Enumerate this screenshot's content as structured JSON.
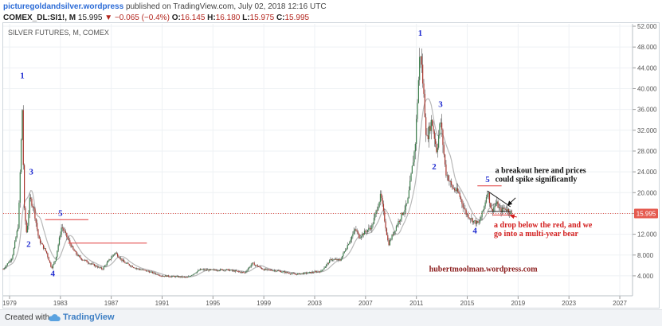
{
  "header": {
    "site": "picturegoldandsilver.wordpress",
    "published": "published on TradingView.com, July 02, 2018 12:16 UTC"
  },
  "quote": {
    "symbol": "COMEX_DL:SI1!, M",
    "last": "15.995",
    "change": "▼ −0.065 (−0.4%)",
    "o_label": "O:",
    "o": "16.145",
    "h_label": "H:",
    "h": "16.180",
    "l_label": "L:",
    "l": "15.975",
    "c_label": "C:",
    "c": "15.995"
  },
  "footer": {
    "created_with": "Created with",
    "brand": "TradingView"
  },
  "colors": {
    "up": "#3a7d4a",
    "down": "#a8342c",
    "wick": "#555555",
    "ma": "#b8b8b8",
    "red_line": "#e03a3a",
    "wave_label": "#1f2bd0",
    "note_black": "#111111",
    "note_red": "#d31f1f",
    "price_badge": "#e55a4f"
  },
  "chart_data": {
    "type": "candlestick",
    "title": "SILVER FUTURES, M, COMEX",
    "ylim": [
      2,
      52
    ],
    "xlim": [
      1978.5,
      2028.0
    ],
    "y_ticks": [
      "52.000",
      "48.000",
      "44.000",
      "40.000",
      "36.000",
      "32.000",
      "28.000",
      "24.000",
      "20.000",
      "16.000",
      "12.000",
      "8.000",
      "4.000"
    ],
    "x_ticks": [
      "1979",
      "1983",
      "1987",
      "1991",
      "1995",
      "1999",
      "2003",
      "2007",
      "2011",
      "2015",
      "2019",
      "2023",
      "2027"
    ],
    "last_price": "15.995",
    "reference_line": 15.995,
    "price_path": [
      [
        1978.5,
        5.3
      ],
      [
        1979.2,
        7.5
      ],
      [
        1979.7,
        14
      ],
      [
        1980.0,
        36
      ],
      [
        1980.15,
        17
      ],
      [
        1980.35,
        12
      ],
      [
        1980.6,
        19
      ],
      [
        1980.9,
        17
      ],
      [
        1981.3,
        11
      ],
      [
        1981.9,
        8.5
      ],
      [
        1982.3,
        5.5
      ],
      [
        1982.6,
        7
      ],
      [
        1983.1,
        13.5
      ],
      [
        1983.5,
        11.5
      ],
      [
        1984.0,
        9
      ],
      [
        1984.5,
        7.5
      ],
      [
        1985.5,
        6.2
      ],
      [
        1986.3,
        5.3
      ],
      [
        1987.3,
        8.5
      ],
      [
        1988.0,
        6.6
      ],
      [
        1989.0,
        5.4
      ],
      [
        1990.0,
        4.8
      ],
      [
        1991.0,
        4.0
      ],
      [
        1992.5,
        3.8
      ],
      [
        1993.0,
        3.7
      ],
      [
        1994.0,
        5.2
      ],
      [
        1995.0,
        5.1
      ],
      [
        1996.0,
        5.2
      ],
      [
        1997.5,
        4.6
      ],
      [
        1998.1,
        6.4
      ],
      [
        1999.0,
        5.2
      ],
      [
        2000.0,
        5.0
      ],
      [
        2001.5,
        4.3
      ],
      [
        2002.5,
        4.6
      ],
      [
        2003.5,
        4.9
      ],
      [
        2004.3,
        7.2
      ],
      [
        2005.0,
        7.0
      ],
      [
        2006.2,
        13.0
      ],
      [
        2006.5,
        11.5
      ],
      [
        2007.5,
        13.5
      ],
      [
        2008.2,
        19.5
      ],
      [
        2008.8,
        10.0
      ],
      [
        2009.5,
        14.0
      ],
      [
        2010.3,
        18.0
      ],
      [
        2010.9,
        29.0
      ],
      [
        2011.3,
        48.0
      ],
      [
        2011.6,
        38.0
      ],
      [
        2011.8,
        30.0
      ],
      [
        2012.2,
        34.0
      ],
      [
        2012.6,
        28.0
      ],
      [
        2012.9,
        34.0
      ],
      [
        2013.3,
        24.0
      ],
      [
        2013.8,
        21.0
      ],
      [
        2014.3,
        20.0
      ],
      [
        2014.9,
        16.0
      ],
      [
        2015.5,
        14.5
      ],
      [
        2015.9,
        14.0
      ],
      [
        2016.3,
        17.0
      ],
      [
        2016.6,
        20.5
      ],
      [
        2016.9,
        16.5
      ],
      [
        2017.3,
        18.0
      ],
      [
        2017.6,
        16.5
      ],
      [
        2018.0,
        17.0
      ],
      [
        2018.5,
        15.995
      ]
    ],
    "waves": [
      {
        "label": "1",
        "x": 1980.0,
        "y": 42.0
      },
      {
        "label": "3",
        "x": 1980.7,
        "y": 23.5
      },
      {
        "label": "2",
        "x": 1980.5,
        "y": 9.6
      },
      {
        "label": "5",
        "x": 1983.0,
        "y": 15.5
      },
      {
        "label": "4",
        "x": 1982.4,
        "y": 3.9
      },
      {
        "label": "1",
        "x": 2011.3,
        "y": 50.2
      },
      {
        "label": "3",
        "x": 2012.9,
        "y": 36.5
      },
      {
        "label": "2",
        "x": 2012.4,
        "y": 24.5
      },
      {
        "label": "5",
        "x": 2016.6,
        "y": 22.0
      },
      {
        "label": "4",
        "x": 2015.6,
        "y": 12.2
      }
    ],
    "h_lines": [
      {
        "x1": 1981.8,
        "x2": 1985.2,
        "y": 14.8
      },
      {
        "x1": 1983.6,
        "x2": 1989.8,
        "y": 10.3
      },
      {
        "x1": 2015.8,
        "x2": 2017.7,
        "y": 21.3
      },
      {
        "x1": 2017.0,
        "x2": 2018.7,
        "y": 15.7
      }
    ],
    "triangle": {
      "x1": 2016.6,
      "x2": 2018.4,
      "y_top1": 20.3,
      "y_top2": 17.3,
      "y_bot": 16.4
    },
    "annotations": [
      {
        "id": "breakout",
        "lines": [
          "a breakout here and prices",
          "could spike significantly"
        ],
        "x": 2017.2,
        "y": 23.8,
        "color": "note_black"
      },
      {
        "id": "drop",
        "lines": [
          "a drop below the red, and we",
          "go into a multi-year bear"
        ],
        "x": 2017.1,
        "y": 13.3,
        "color": "note_red"
      }
    ],
    "arrows": [
      {
        "from": [
          2018.8,
          19.0
        ],
        "to": [
          2018.2,
          17.6
        ],
        "color": "note_black"
      },
      {
        "from": [
          2018.9,
          15.3
        ],
        "to": [
          2018.4,
          15.6
        ],
        "color": "note_red"
      }
    ],
    "watermark": "hubertmoolman.wordpress.com"
  }
}
